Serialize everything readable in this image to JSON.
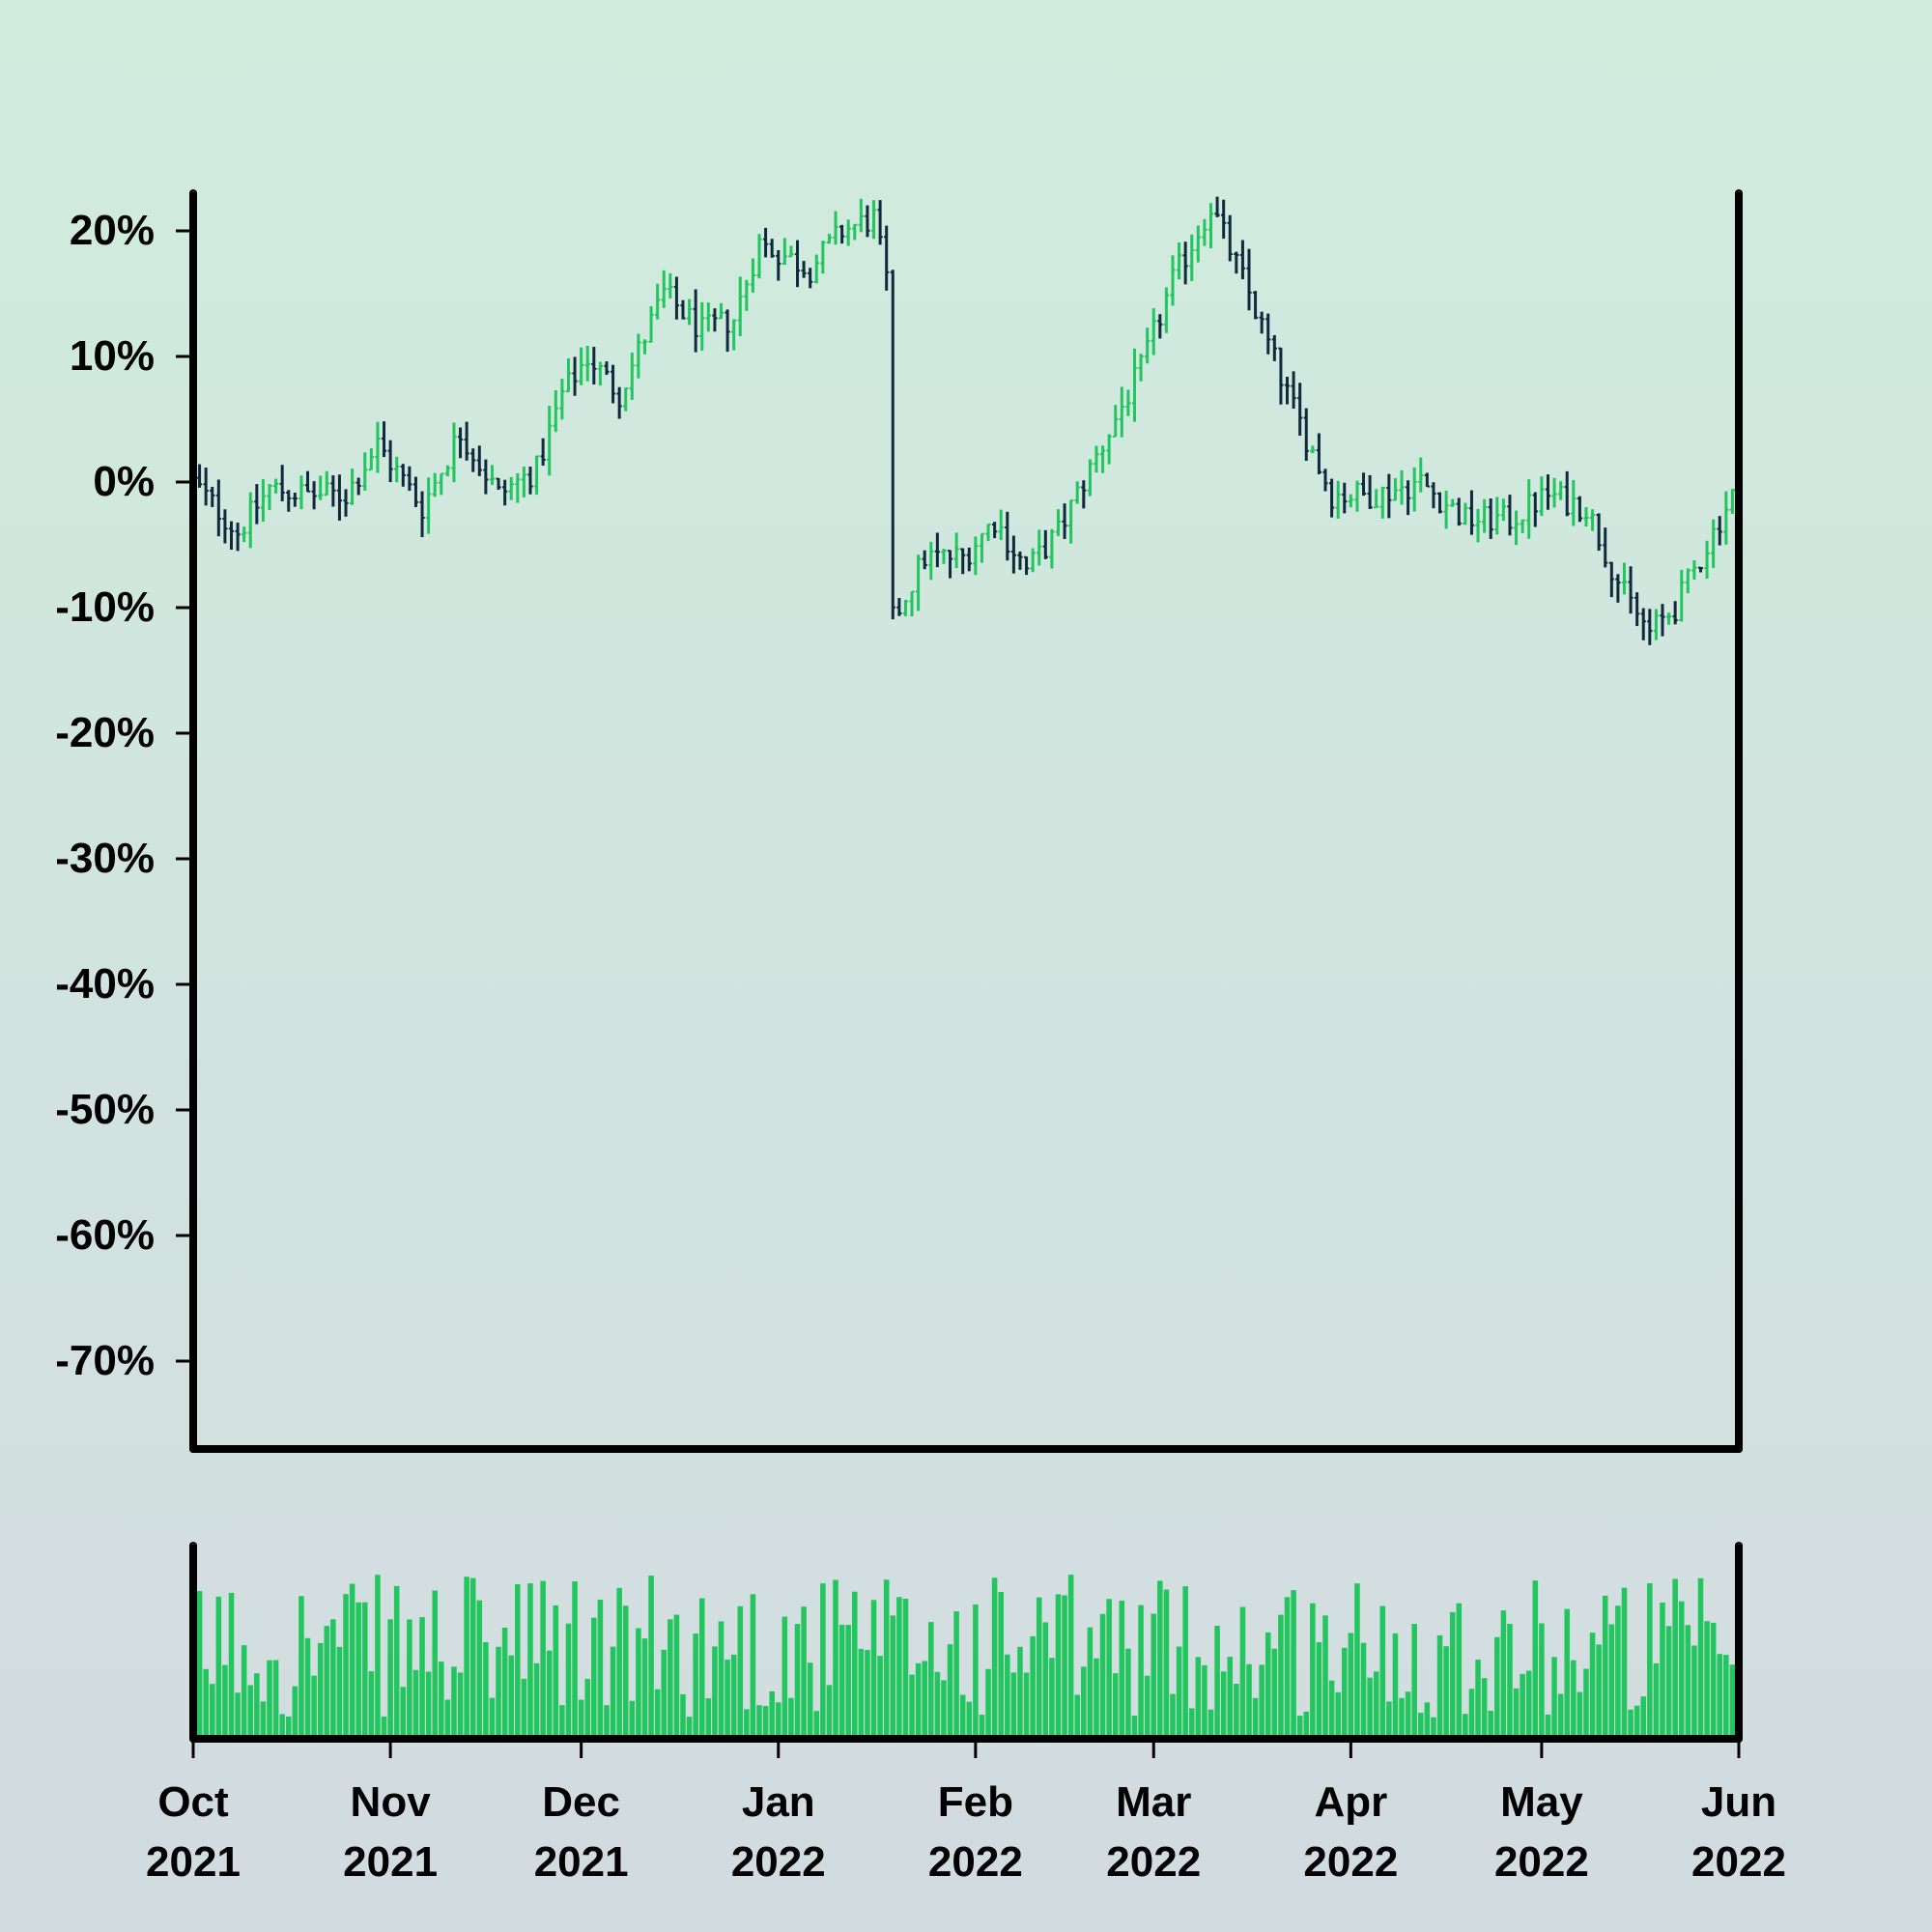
{
  "chart_data": {
    "type": "ohlc",
    "colors": {
      "up": "#22c55e",
      "down": "#0f2a3d",
      "volume": "#22c55e",
      "axis": "#000000",
      "background_top": "#d0ecdd",
      "background_bottom": "#d2dbe0"
    },
    "x": {
      "start": "2021-10-01",
      "end": "2022-06-01"
    },
    "price_panel": {
      "ylim": [
        -77,
        23
      ],
      "yticks": [
        20,
        10,
        0,
        -10,
        -20,
        -30,
        -40,
        -50,
        -60,
        -70
      ],
      "ytick_labels": [
        "20%",
        "10%",
        "0%",
        "-10%",
        "-20%",
        "-30%",
        "-40%",
        "-50%",
        "-60%",
        "-70%"
      ],
      "grid": false,
      "anchors": [
        [
          "2021-10-01",
          0
        ],
        [
          "2021-10-08",
          -4
        ],
        [
          "2021-10-13",
          -0.5
        ],
        [
          "2021-10-19",
          -1
        ],
        [
          "2021-10-25",
          -1
        ],
        [
          "2021-10-30",
          3
        ],
        [
          "2021-11-06",
          -2
        ],
        [
          "2021-11-12",
          4
        ],
        [
          "2021-11-18",
          -1
        ],
        [
          "2021-11-24",
          1
        ],
        [
          "2021-11-28",
          7
        ],
        [
          "2021-12-02",
          10
        ],
        [
          "2021-12-07",
          7
        ],
        [
          "2021-12-14",
          15
        ],
        [
          "2021-12-20",
          12
        ],
        [
          "2021-12-25",
          13
        ],
        [
          "2021-12-29",
          19
        ],
        [
          "2022-01-06",
          17
        ],
        [
          "2022-01-11",
          20
        ],
        [
          "2022-01-16",
          21
        ],
        [
          "2022-01-18",
          16
        ],
        [
          "2022-01-19",
          -11
        ],
        [
          "2022-01-24",
          -6
        ],
        [
          "2022-01-30",
          -6
        ],
        [
          "2022-02-04",
          -3
        ],
        [
          "2022-02-09",
          -7
        ],
        [
          "2022-02-14",
          -4
        ],
        [
          "2022-02-20",
          2
        ],
        [
          "2022-02-27",
          9
        ],
        [
          "2022-03-04",
          16
        ],
        [
          "2022-03-10",
          22
        ],
        [
          "2022-03-16",
          15
        ],
        [
          "2022-03-22",
          7
        ],
        [
          "2022-03-29",
          -1
        ],
        [
          "2022-04-05",
          -1
        ],
        [
          "2022-04-12",
          0
        ],
        [
          "2022-04-19",
          -3
        ],
        [
          "2022-04-26",
          -3
        ],
        [
          "2022-05-02",
          -1
        ],
        [
          "2022-05-08",
          -2
        ],
        [
          "2022-05-14",
          -9
        ],
        [
          "2022-05-18",
          -12
        ],
        [
          "2022-05-22",
          -10
        ],
        [
          "2022-05-27",
          -5
        ],
        [
          "2022-06-01",
          0
        ]
      ]
    },
    "volume_panel": {
      "ylim": [
        0,
        1
      ]
    },
    "xticks": [
      "2021-10-01",
      "2021-11-01",
      "2021-12-01",
      "2022-01-01",
      "2022-02-01",
      "2022-03-01",
      "2022-04-01",
      "2022-05-01",
      "2022-06-01"
    ],
    "xtick_labels": [
      [
        "Oct",
        "2021"
      ],
      [
        "Nov",
        "2021"
      ],
      [
        "Dec",
        "2021"
      ],
      [
        "Jan",
        "2022"
      ],
      [
        "Feb",
        "2022"
      ],
      [
        "Mar",
        "2022"
      ],
      [
        "Apr",
        "2022"
      ],
      [
        "May",
        "2022"
      ],
      [
        "Jun",
        "2022"
      ]
    ]
  }
}
